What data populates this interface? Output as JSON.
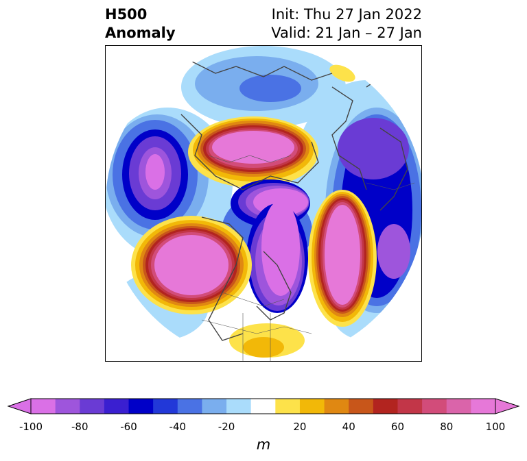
{
  "title": {
    "left_line1": "H500",
    "left_line2": "Anomaly",
    "right_line1": "Init: Thu 27 Jan 2022",
    "right_line2": "Valid: 21 Jan – 27 Jan"
  },
  "colorbar": {
    "ticks": [
      "-100",
      "-80",
      "-60",
      "-40",
      "-20",
      "20",
      "40",
      "60",
      "80",
      "100"
    ],
    "unit": "m",
    "levels": [
      -100,
      -90,
      -80,
      -70,
      -60,
      -50,
      -40,
      -30,
      -20,
      -10,
      10,
      20,
      30,
      40,
      50,
      60,
      70,
      80,
      90,
      100
    ],
    "colors": [
      "#da70e6",
      "#9e55dc",
      "#6a3bd4",
      "#3a1fd0",
      "#0000c8",
      "#2238d8",
      "#4a72e4",
      "#7aaeee",
      "#aadcfb",
      "#ffffff",
      "#fde24a",
      "#f2b808",
      "#e08812",
      "#c8561a",
      "#b2241f",
      "#c23648",
      "#d24c7a",
      "#da64aa",
      "#e678d8"
    ]
  },
  "map": {
    "projection": "north-polar-stereographic",
    "anomalies": [
      {
        "sign": "positive",
        "peak_m": 100
      },
      {
        "sign": "positive",
        "peak_m": 100
      },
      {
        "sign": "positive",
        "peak_m": 100
      },
      {
        "sign": "negative",
        "peak_m": -100
      },
      {
        "sign": "negative",
        "peak_m": -100
      },
      {
        "sign": "negative",
        "peak_m": -90
      },
      {
        "sign": "negative",
        "peak_m": -80
      },
      {
        "sign": "negative",
        "peak_m": -60
      }
    ]
  }
}
